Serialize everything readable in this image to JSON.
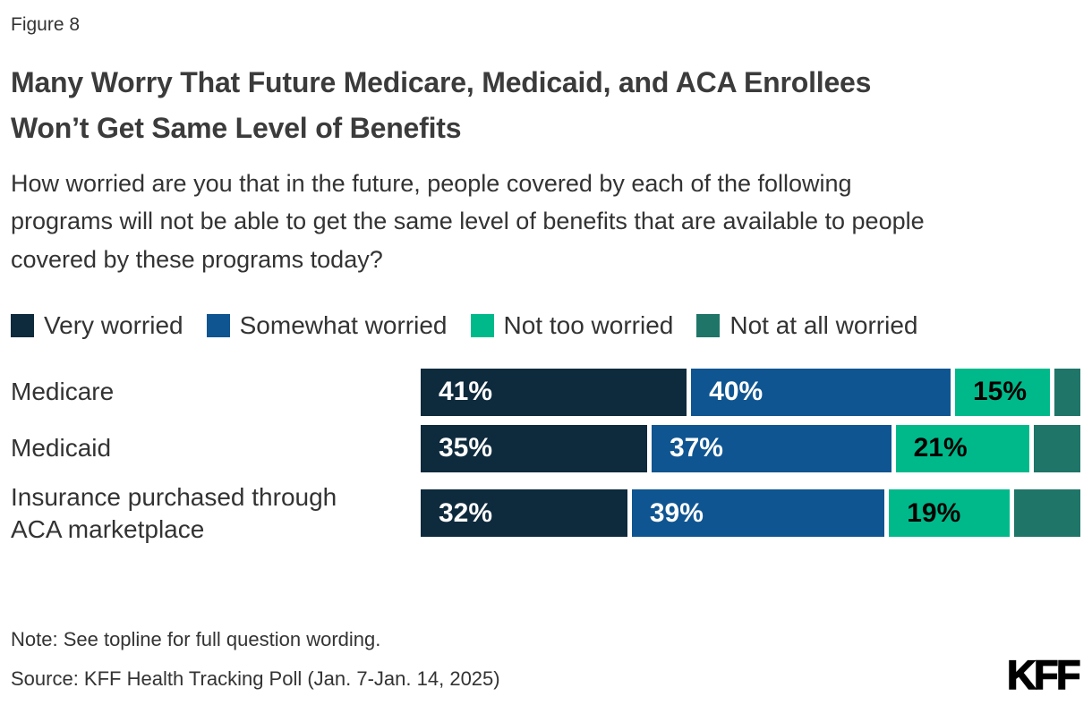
{
  "figure_label": "Figure 8",
  "title": "Many Worry That Future Medicare, Medicaid, and ACA Enrollees Won’t Get Same Level of Benefits",
  "subtitle": "How worried are you that in the future, people covered by each of the following programs will not be able to get the same level of benefits that are available to people covered by these programs today?",
  "chart_data": {
    "type": "bar",
    "variant": "horizontal-stacked",
    "title": "Many Worry That Future Medicare, Medicaid, and ACA Enrollees Won’t Get Same Level of Benefits",
    "categories": [
      "Medicare",
      "Medicaid",
      "Insurance purchased through ACA marketplace"
    ],
    "series": [
      {
        "name": "Very worried",
        "color": "#0e2a3d",
        "label_color": "#ffffff",
        "labels_shown": true,
        "values": [
          41,
          35,
          32
        ]
      },
      {
        "name": "Somewhat worried",
        "color": "#0f5591",
        "label_color": "#ffffff",
        "labels_shown": true,
        "values": [
          40,
          37,
          39
        ]
      },
      {
        "name": "Not too worried",
        "color": "#00b98b",
        "label_color": "#000000",
        "labels_shown": true,
        "values": [
          15,
          21,
          19
        ]
      },
      {
        "name": "Not at all worried",
        "color": "#1f7568",
        "label_color": null,
        "labels_shown": false,
        "values": [
          4,
          7,
          10
        ]
      }
    ],
    "value_format": "{value}%",
    "xlim": [
      0,
      100
    ],
    "legend_position": "top",
    "grid": false
  },
  "footer": {
    "note": "Note: See topline for full question wording.",
    "source": "Source: KFF Health Tracking Poll (Jan. 7-Jan. 14, 2025)",
    "logo": "KFF"
  }
}
